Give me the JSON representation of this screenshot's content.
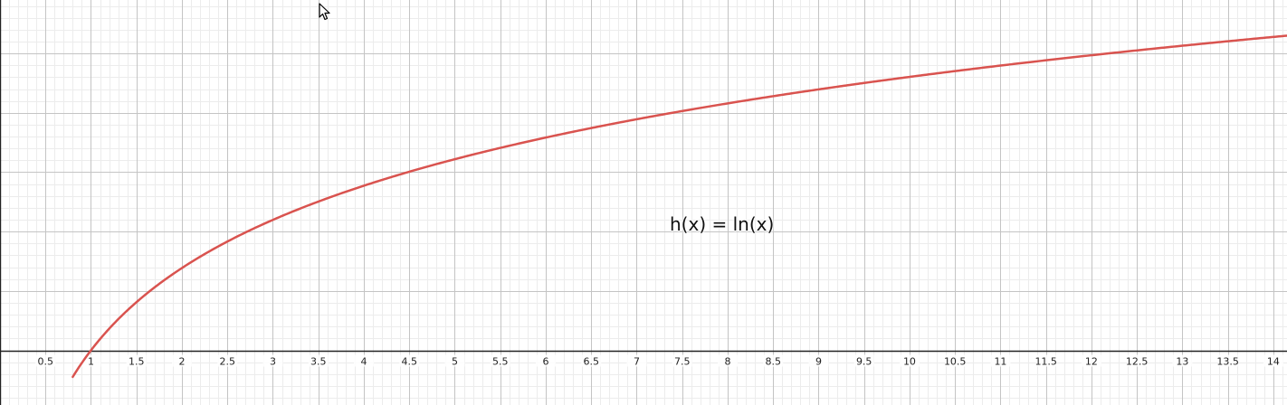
{
  "chart_data": {
    "type": "line",
    "title": "",
    "xlabel": "",
    "ylabel": "",
    "xlim": [
      0,
      14.15
    ],
    "ylim": [
      -0.46,
      2.95
    ],
    "x_ticks": [
      "0.5",
      "1",
      "1.5",
      "2",
      "2.5",
      "3",
      "3.5",
      "4",
      "4.5",
      "5",
      "5.5",
      "6",
      "6.5",
      "7",
      "7.5",
      "8",
      "8.5",
      "9",
      "9.5",
      "10",
      "10.5",
      "11",
      "11.5",
      "12",
      "12.5",
      "13",
      "13.5",
      "14"
    ],
    "x_tick_values": [
      0.5,
      1,
      1.5,
      2,
      2.5,
      3,
      3.5,
      4,
      4.5,
      5,
      5.5,
      6,
      6.5,
      7,
      7.5,
      8,
      8.5,
      9,
      9.5,
      10,
      10.5,
      11,
      11.5,
      12,
      12.5,
      13,
      13.5,
      14
    ],
    "grid": true,
    "series": [
      {
        "name": "h(x) = ln(x)",
        "color": "#d9534f",
        "function": "ln(x)",
        "x": [
          0.8,
          1,
          1.5,
          2,
          2.5,
          3,
          3.5,
          4,
          4.5,
          5,
          5.5,
          6,
          6.5,
          7,
          7.5,
          8,
          8.5,
          9,
          9.5,
          10,
          10.5,
          11,
          11.5,
          12,
          12.5,
          13,
          13.5,
          14,
          14.15
        ],
        "y": [
          -0.223,
          0,
          0.405,
          0.693,
          0.916,
          1.099,
          1.253,
          1.386,
          1.504,
          1.609,
          1.705,
          1.792,
          1.872,
          1.946,
          2.015,
          2.079,
          2.14,
          2.197,
          2.251,
          2.303,
          2.351,
          2.398,
          2.442,
          2.485,
          2.526,
          2.565,
          2.603,
          2.639,
          2.65
        ]
      }
    ]
  },
  "annotations": {
    "function_label": "h(x) = ln(x)"
  },
  "colors": {
    "minor_grid": "#ececec",
    "major_grid": "#c4c4c4",
    "axis": "#222222",
    "curve": "#d9534f"
  }
}
